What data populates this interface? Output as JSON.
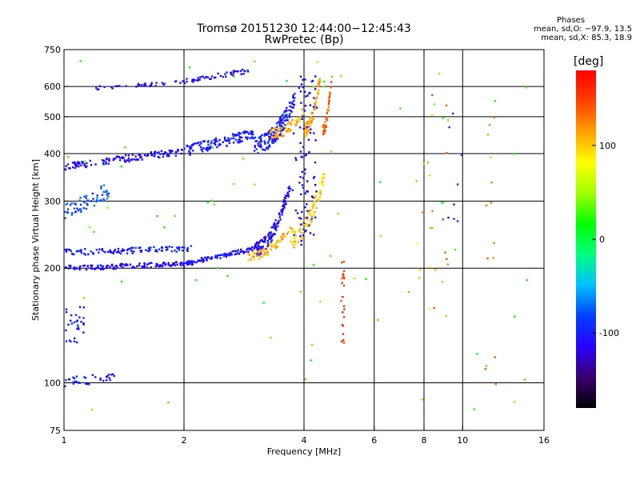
{
  "header": {
    "title_line1": "Tromsø 20151230 12:44:00−12:45:43",
    "title_line2": "RwPretec (Bp)"
  },
  "stats": {
    "heading": "Phases",
    "line1": "mean, sd,O: −97.9, 13.5",
    "line2": "mean, sd,X:  85.3, 18.9"
  },
  "colorbar": {
    "unit": "[deg]",
    "ticks": [
      {
        "value": 100,
        "label": "100"
      },
      {
        "value": 0,
        "label": "0"
      },
      {
        "value": -100,
        "label": "-100"
      }
    ],
    "range": [
      -180,
      180
    ],
    "colors": [
      "#000000",
      "#3b0070",
      "#2a00ff",
      "#0040ff",
      "#00c0ff",
      "#00ff80",
      "#00ff00",
      "#a0ff00",
      "#ffff00",
      "#ffa000",
      "#ff4000",
      "#ff0000"
    ]
  },
  "chart_data": {
    "type": "scatter",
    "xlabel": "Frequency [MHz]",
    "ylabel": "Stationary phase Virtual Height [km]",
    "x_scale": "log",
    "y_scale": "log",
    "xlim": [
      1,
      16
    ],
    "ylim": [
      75,
      750
    ],
    "x_ticks": [
      {
        "value": 1,
        "label": "1"
      },
      {
        "value": 2,
        "label": "2"
      },
      {
        "value": 4,
        "label": "4"
      },
      {
        "value": 6,
        "label": "6"
      },
      {
        "value": 8,
        "label": "8"
      },
      {
        "value": 10,
        "label": "10"
      },
      {
        "value": 16,
        "label": "16"
      }
    ],
    "x_gridlines": [
      2,
      4,
      6,
      8,
      10
    ],
    "y_ticks": [
      {
        "value": 75,
        "label": "75"
      },
      {
        "value": 100,
        "label": "100"
      },
      {
        "value": 200,
        "label": "200"
      },
      {
        "value": 300,
        "label": "300"
      },
      {
        "value": 400,
        "label": "400"
      },
      {
        "value": 500,
        "label": "500"
      },
      {
        "value": 600,
        "label": "600"
      },
      {
        "value": 750,
        "label": "750"
      }
    ],
    "y_gridlines": [
      100,
      200,
      300,
      400,
      500,
      600
    ],
    "traces": [
      {
        "x0": 1.0,
        "x1": 2.0,
        "y0": 200,
        "y1": 205,
        "phase": -110,
        "n": 130,
        "curve": "flat",
        "spread": 3
      },
      {
        "x0": 1.0,
        "x1": 2.1,
        "y0": 220,
        "y1": 225,
        "phase": -100,
        "n": 110,
        "curve": "flat",
        "spread": 4
      },
      {
        "x0": 2.0,
        "x1": 3.0,
        "y0": 205,
        "y1": 225,
        "phase": -105,
        "n": 90,
        "curve": "flat",
        "spread": 3
      },
      {
        "x0": 3.0,
        "x1": 3.7,
        "y0": 225,
        "y1": 330,
        "phase": -110,
        "n": 130,
        "curve": "rise",
        "spread": 10
      },
      {
        "x0": 2.9,
        "x1": 3.7,
        "y0": 215,
        "y1": 255,
        "phase": 110,
        "n": 60,
        "curve": "rise",
        "spread": 6
      },
      {
        "x0": 3.7,
        "x1": 4.5,
        "y0": 240,
        "y1": 350,
        "phase": 100,
        "n": 90,
        "curve": "rise",
        "spread": 14
      },
      {
        "x0": 1.0,
        "x1": 2.0,
        "y0": 370,
        "y1": 405,
        "phase": -110,
        "n": 130,
        "curve": "flat",
        "spread": 8
      },
      {
        "x0": 2.0,
        "x1": 3.0,
        "y0": 405,
        "y1": 450,
        "phase": -100,
        "n": 120,
        "curve": "flat",
        "spread": 14
      },
      {
        "x0": 3.0,
        "x1": 3.8,
        "y0": 420,
        "y1": 560,
        "phase": -100,
        "n": 150,
        "curve": "rise",
        "spread": 25
      },
      {
        "x0": 3.3,
        "x1": 4.0,
        "y0": 450,
        "y1": 520,
        "phase": 110,
        "n": 60,
        "curve": "rise",
        "spread": 15
      },
      {
        "x0": 4.0,
        "x1": 4.4,
        "y0": 460,
        "y1": 640,
        "phase": 110,
        "n": 70,
        "curve": "rise",
        "spread": 20
      },
      {
        "x0": 3.9,
        "x1": 4.15,
        "y0": 230,
        "y1": 640,
        "phase": -110,
        "n": 90,
        "curve": "vertical",
        "spread": 0.05
      },
      {
        "x0": 4.45,
        "x1": 4.7,
        "y0": 460,
        "y1": 650,
        "phase": 140,
        "n": 40,
        "curve": "rise",
        "spread": 15
      },
      {
        "x0": 1.2,
        "x1": 1.8,
        "y0": 595,
        "y1": 610,
        "phase": -110,
        "n": 30,
        "curve": "flat",
        "spread": 6
      },
      {
        "x0": 1.9,
        "x1": 2.9,
        "y0": 615,
        "y1": 660,
        "phase": -110,
        "n": 55,
        "curve": "flat",
        "spread": 10
      },
      {
        "x0": 1.0,
        "x1": 1.3,
        "y0": 280,
        "y1": 320,
        "phase": -80,
        "n": 60,
        "curve": "flat",
        "spread": 15
      },
      {
        "x0": 1.0,
        "x1": 1.35,
        "y0": 100,
        "y1": 104,
        "phase": -100,
        "n": 35,
        "curve": "flat",
        "spread": 3
      },
      {
        "x0": 1.0,
        "x1": 1.12,
        "y0": 125,
        "y1": 160,
        "phase": -100,
        "n": 30,
        "curve": "vertical",
        "spread": 0.03
      },
      {
        "x0": 5.0,
        "x1": 5.0,
        "y0": 125,
        "y1": 215,
        "phase": 150,
        "n": 22,
        "curve": "vertical",
        "spread": 0.01
      },
      {
        "x0": 8.8,
        "x1": 8.8,
        "y0": 145,
        "y1": 600,
        "phase": 130,
        "n": 14,
        "curve": "vertical",
        "spread": 0.05
      },
      {
        "x0": 12.0,
        "x1": 12.0,
        "y0": 90,
        "y1": 600,
        "phase": 120,
        "n": 14,
        "curve": "vertical",
        "spread": 0.05
      },
      {
        "x0": 8.0,
        "x1": 8.0,
        "y0": 150,
        "y1": 600,
        "phase": 100,
        "n": 10,
        "curve": "vertical",
        "spread": 0.05
      },
      {
        "x0": 9.5,
        "x1": 9.5,
        "y0": 200,
        "y1": 520,
        "phase": -90,
        "n": 8,
        "curve": "vertical",
        "spread": 0.05
      },
      {
        "x0": 1.0,
        "x1": 16.0,
        "y0": 80,
        "y1": 700,
        "phase": 30,
        "n": 70,
        "curve": "random",
        "spread": 0
      }
    ]
  }
}
